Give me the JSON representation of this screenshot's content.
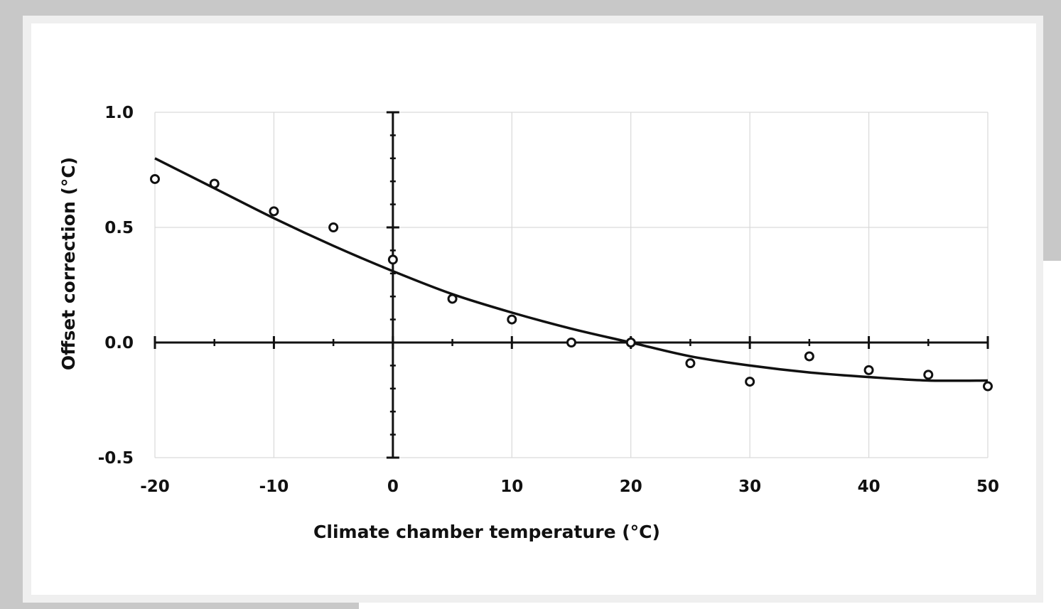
{
  "chart_data": {
    "type": "scatter",
    "title": "",
    "xlabel": "Climate chamber temperature (°C)",
    "ylabel": "Offset correction  (°C)",
    "xlim": [
      -20,
      50
    ],
    "ylim": [
      -0.5,
      1.0
    ],
    "x_ticks": [
      "-20",
      "-10",
      "0",
      "10",
      "20",
      "30",
      "40",
      "50"
    ],
    "y_ticks": [
      "1.0",
      "0.5",
      "0.0",
      "-0.5"
    ],
    "grid": true,
    "legend": "none",
    "series": [
      {
        "kind": "points",
        "marker": "open-circle",
        "x": [
          -20,
          -15,
          -10,
          -5,
          0,
          5,
          10,
          15,
          20,
          25,
          30,
          35,
          40,
          45,
          50
        ],
        "y": [
          0.71,
          0.69,
          0.57,
          0.5,
          0.36,
          0.19,
          0.1,
          0.0,
          0.0,
          -0.09,
          -0.17,
          -0.06,
          -0.12,
          -0.14,
          -0.19
        ]
      },
      {
        "kind": "fit-line",
        "x": [
          -20,
          -15,
          -10,
          -5,
          0,
          5,
          10,
          15,
          20,
          25,
          30,
          35,
          40,
          45,
          50
        ],
        "y": [
          0.8,
          0.67,
          0.54,
          0.42,
          0.31,
          0.21,
          0.13,
          0.06,
          0.0,
          -0.06,
          -0.1,
          -0.13,
          -0.15,
          -0.165,
          -0.165
        ]
      }
    ],
    "colors": {
      "ink": "#111111",
      "grid": "#d9d9d9"
    }
  }
}
